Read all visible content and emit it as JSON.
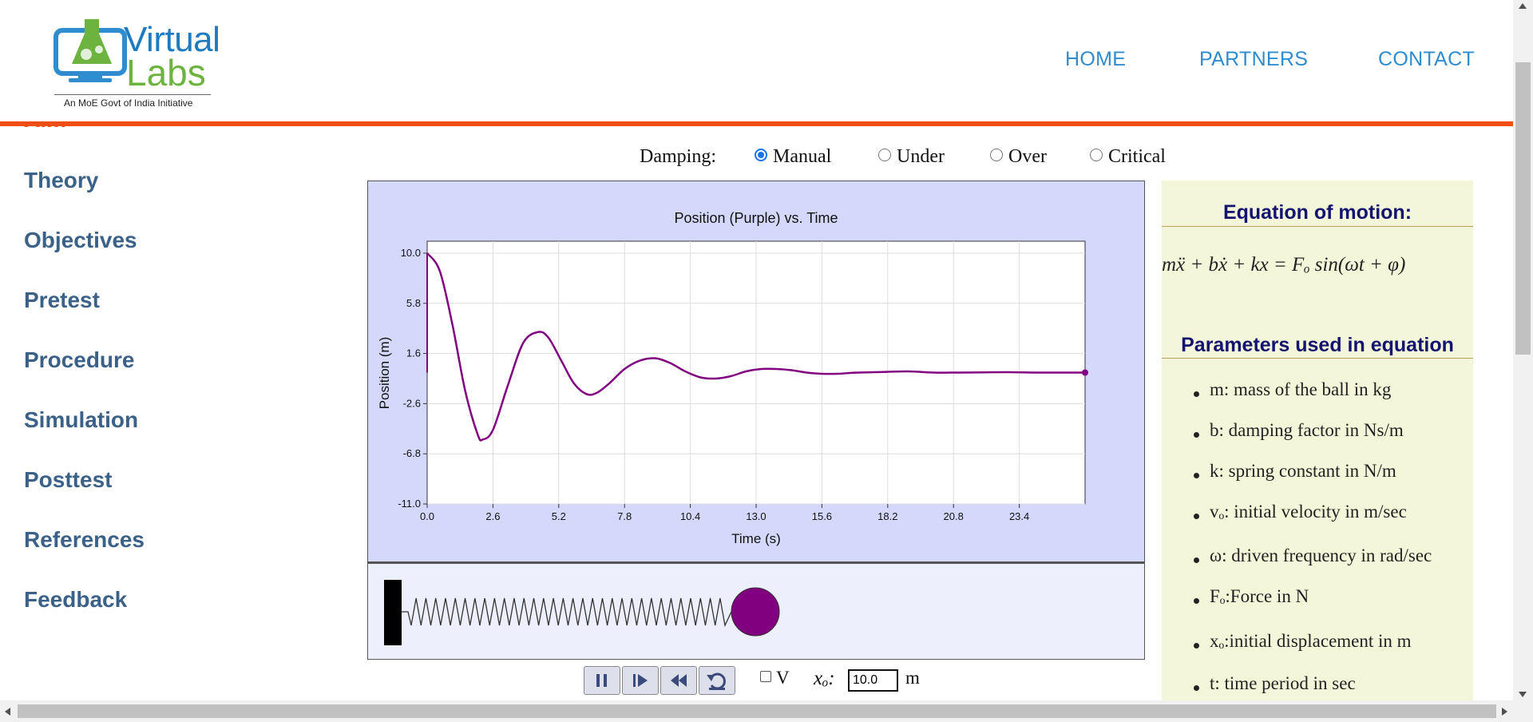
{
  "header": {
    "logo": {
      "line1": "Virtual",
      "line2": "Labs",
      "tagline": "An MoE Govt of India Initiative"
    },
    "nav": [
      "HOME",
      "PARTNERS",
      "CONTACT"
    ]
  },
  "sidebar": {
    "partial_item": "Aim",
    "items": [
      "Theory",
      "Objectives",
      "Pretest",
      "Procedure",
      "Simulation",
      "Posttest",
      "References",
      "Feedback"
    ]
  },
  "damping": {
    "label": "Damping:",
    "options": [
      "Manual",
      "Under",
      "Over",
      "Critical"
    ],
    "selected": "Manual"
  },
  "chart_data": {
    "type": "line",
    "title": "Position (Purple) vs. Time",
    "xlabel": "Time (s)",
    "ylabel": "Position (m)",
    "xlim": [
      0,
      26
    ],
    "ylim": [
      -11,
      11
    ],
    "x_ticks": [
      "0.0",
      "2.6",
      "5.2",
      "7.8",
      "10.4",
      "13.0",
      "15.6",
      "18.2",
      "20.8",
      "23.4"
    ],
    "y_ticks": [
      "10.0",
      "5.8",
      "1.6",
      "-2.6",
      "-6.8",
      "-11.0"
    ],
    "grid": true,
    "series": [
      {
        "color": "#800080",
        "x": [
          0,
          0.5,
          1.0,
          1.5,
          2.0,
          2.2,
          2.6,
          3.2,
          3.8,
          4.4,
          4.8,
          5.3,
          5.8,
          6.3,
          6.7,
          7.2,
          7.8,
          8.4,
          9.0,
          9.6,
          10.2,
          10.8,
          11.4,
          12.0,
          12.6,
          13.2,
          13.8,
          14.4,
          15.0,
          15.6,
          16.2,
          17.0,
          18.0,
          19.0,
          20.0,
          21.0,
          22.0,
          23.0,
          24.0,
          25.0,
          26.0
        ],
        "y": [
          10.0,
          8.5,
          4.0,
          -1.5,
          -5.2,
          -5.6,
          -4.8,
          -1.0,
          2.5,
          3.4,
          2.9,
          1.0,
          -0.9,
          -1.8,
          -1.7,
          -0.9,
          0.3,
          1.0,
          1.2,
          0.8,
          0.1,
          -0.4,
          -0.5,
          -0.3,
          0.1,
          0.3,
          0.3,
          0.2,
          0.0,
          -0.1,
          -0.1,
          0.0,
          0.05,
          0.1,
          0.0,
          0.0,
          0.02,
          0.03,
          0.0,
          0.0,
          0.0
        ]
      }
    ]
  },
  "equation": {
    "heading": "Equation of motion:",
    "formula": "mẍ + bẋ + kx = Fₒ sin(ωt + φ)"
  },
  "parameters": {
    "heading": "Parameters used in equation",
    "items": [
      "m: mass of the ball in kg",
      "b: damping factor in Ns/m",
      "k: spring constant in N/m",
      "vₒ: initial velocity in m/sec",
      "ω: driven frequency in rad/sec",
      "Fₒ:Force in N",
      "xₒ:initial displacement in m",
      "t: time period in sec"
    ]
  },
  "controls": {
    "buttons": [
      "pause-icon",
      "step-forward-icon",
      "rewind-icon",
      "reset-icon"
    ],
    "v_label": "V",
    "v_checked": false,
    "x0_label": "xₒ:",
    "x0_value": "10.0",
    "x0_unit": "m"
  }
}
